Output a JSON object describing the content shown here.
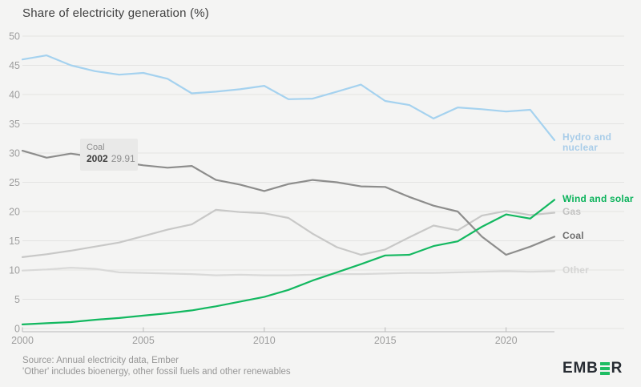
{
  "title": "Share of electricity generation (%)",
  "tooltip": {
    "series": "Coal",
    "year": "2002",
    "value": "29.91"
  },
  "footer": {
    "line1": "Source: Annual electricity data, Ember",
    "line2": "'Other' includes bioenergy, other fossil fuels and other renewables"
  },
  "logo": {
    "part1": "EMB",
    "part2": "R",
    "accent_color": "#1fbd63",
    "text_color": "#272c33"
  },
  "colors": {
    "background": "#f4f4f3",
    "gridline": "#e3e3e2",
    "axis_line": "#b9b9b9",
    "tick_label": "#9e9e9e",
    "tooltip_bg": "#e9e9e8"
  },
  "chart_data": {
    "type": "line",
    "title": "Share of electricity generation (%)",
    "xlabel": "",
    "ylabel": "Share of electricity generation (%)",
    "xlim": [
      2000,
      2022
    ],
    "ylim": [
      0,
      50
    ],
    "x_ticks": [
      2000,
      2005,
      2010,
      2015,
      2020
    ],
    "y_ticks": [
      0,
      5,
      10,
      15,
      20,
      25,
      30,
      35,
      40,
      45,
      50
    ],
    "grid": true,
    "legend_position": "right-end-of-line-labels",
    "x": [
      2000,
      2001,
      2002,
      2003,
      2004,
      2005,
      2006,
      2007,
      2008,
      2009,
      2010,
      2011,
      2012,
      2013,
      2014,
      2015,
      2016,
      2017,
      2018,
      2019,
      2020,
      2021,
      2022
    ],
    "series": [
      {
        "name": "Other",
        "label": "Other",
        "color": "#d9d9d8",
        "label_color": "#d5d5d4",
        "values": [
          9.9,
          10.1,
          10.4,
          10.2,
          9.6,
          9.5,
          9.4,
          9.3,
          9.1,
          9.2,
          9.1,
          9.1,
          9.2,
          9.3,
          9.3,
          9.4,
          9.5,
          9.5,
          9.6,
          9.7,
          9.8,
          9.7,
          9.8
        ]
      },
      {
        "name": "Gas",
        "label": "Gas",
        "color": "#c8c8c7",
        "label_color": "#c3c3c2",
        "values": [
          12.2,
          12.7,
          13.3,
          14.0,
          14.7,
          15.8,
          16.9,
          17.8,
          20.3,
          19.9,
          19.7,
          18.9,
          16.2,
          13.9,
          12.6,
          13.5,
          15.6,
          17.6,
          16.8,
          19.3,
          20.1,
          19.4,
          19.8
        ]
      },
      {
        "name": "Hydro and nuclear",
        "label": "Hydro and\nnuclear",
        "color": "#a5d2ef",
        "label_color": "#a9cde9",
        "values": [
          46.0,
          46.7,
          45.0,
          44.0,
          43.4,
          43.7,
          42.7,
          40.2,
          40.5,
          40.9,
          41.5,
          39.2,
          39.3,
          40.5,
          41.7,
          38.9,
          38.2,
          35.9,
          37.8,
          37.5,
          37.1,
          37.4,
          32.2
        ]
      },
      {
        "name": "Coal",
        "label": "Coal",
        "color": "#8d8d8c",
        "label_color": "#6e6e6e",
        "values": [
          30.4,
          29.2,
          29.9,
          29.3,
          28.5,
          27.9,
          27.5,
          27.8,
          25.4,
          24.6,
          23.5,
          24.7,
          25.4,
          25.0,
          24.3,
          24.2,
          22.5,
          21.0,
          20.0,
          15.7,
          12.6,
          14.0,
          15.7
        ]
      },
      {
        "name": "Wind and solar",
        "label": "Wind and solar",
        "color": "#13b860",
        "label_color": "#0cb35c",
        "values": [
          0.7,
          0.9,
          1.1,
          1.5,
          1.8,
          2.2,
          2.6,
          3.1,
          3.8,
          4.6,
          5.4,
          6.6,
          8.2,
          9.6,
          11.0,
          12.5,
          12.6,
          14.1,
          14.9,
          17.4,
          19.5,
          18.8,
          22.0
        ]
      }
    ]
  }
}
